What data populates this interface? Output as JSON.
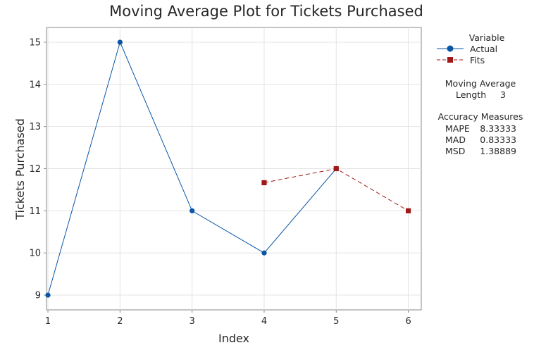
{
  "chart_data": {
    "type": "line",
    "title": "Moving Average Plot for Tickets Purchased",
    "xlabel": "Index",
    "ylabel": "Tickets Purchased",
    "x": [
      1,
      2,
      3,
      4,
      5,
      6
    ],
    "xlim": [
      0.98,
      6.18
    ],
    "ylim": [
      8.65,
      15.35
    ],
    "xticks": [
      1,
      2,
      3,
      4,
      5,
      6
    ],
    "yticks": [
      9,
      10,
      11,
      12,
      13,
      14,
      15
    ],
    "grid": true,
    "series": [
      {
        "name": "Actual",
        "marker": "circle",
        "linestyle": "solid",
        "color": "#0a56a6",
        "x": [
          1,
          2,
          3,
          4,
          5
        ],
        "values": [
          9,
          15,
          11,
          10,
          12
        ]
      },
      {
        "name": "Fits",
        "marker": "square",
        "linestyle": "dashed",
        "color": "#a01818",
        "x": [
          4,
          5,
          6
        ],
        "values": [
          11.6667,
          12,
          11
        ]
      }
    ],
    "legend": {
      "title": "Variable",
      "position": "right"
    },
    "moving_average": {
      "heading": "Moving Average",
      "length_label": "Length",
      "length_value": "3"
    },
    "accuracy": {
      "heading": "Accuracy Measures",
      "rows": [
        {
          "label": "MAPE",
          "value": "8.33333"
        },
        {
          "label": "MAD",
          "value": "0.83333"
        },
        {
          "label": "MSD",
          "value": "1.38889"
        }
      ]
    }
  }
}
